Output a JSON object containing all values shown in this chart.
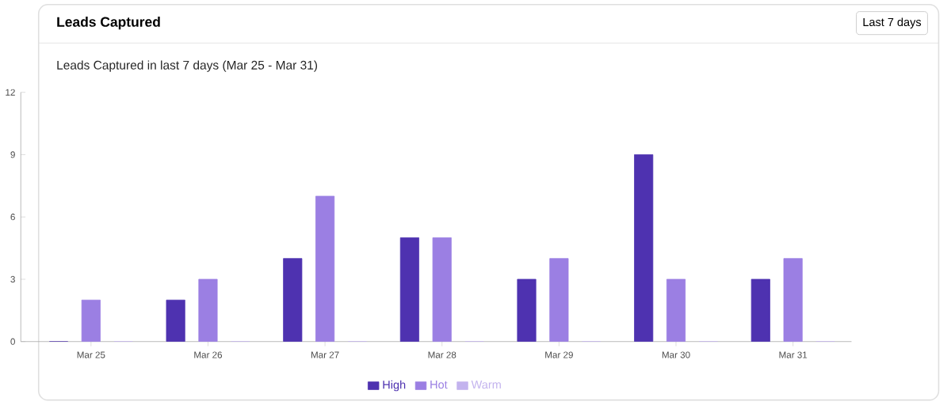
{
  "chart_data": {
    "type": "bar",
    "title": "Leads Captured",
    "subtitle": "Leads Captured in last 7 days (Mar 25 - Mar 31)",
    "annotations": [
      "Last 7 days"
    ],
    "categories": [
      "Mar 25",
      "Mar 26",
      "Mar 27",
      "Mar 28",
      "Mar 29",
      "Mar 30",
      "Mar 31"
    ],
    "series": [
      {
        "name": "High",
        "color": "#4e32b0",
        "values": [
          0,
          2,
          4,
          5,
          3,
          9,
          3
        ]
      },
      {
        "name": "Hot",
        "color": "#9b7fe3",
        "values": [
          2,
          3,
          7,
          5,
          4,
          3,
          4
        ]
      },
      {
        "name": "Warm",
        "color": "#c3b3ee",
        "values": [
          0,
          0,
          0,
          0,
          0,
          0,
          0
        ]
      }
    ],
    "ylim": [
      0,
      12
    ],
    "yticks": [
      0,
      3,
      6,
      9,
      12
    ],
    "grid": false,
    "legend": "bottom"
  }
}
